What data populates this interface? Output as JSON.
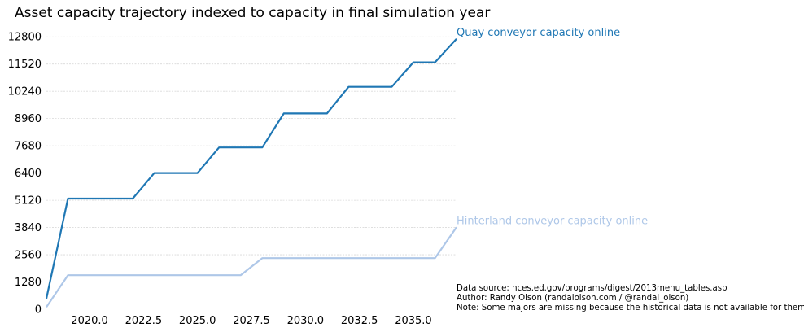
{
  "chart_data": {
    "type": "line",
    "title": "Asset capacity trajectory indexed to capacity in final simulation year",
    "xlabel": "",
    "ylabel": "",
    "xlim": [
      2018,
      2037
    ],
    "ylim": [
      0,
      13000
    ],
    "yticks": [
      0,
      1280,
      2560,
      3840,
      5120,
      6400,
      7680,
      8960,
      10240,
      11520,
      12800
    ],
    "xticks": [
      2020.0,
      2022.5,
      2025.0,
      2027.5,
      2030.0,
      2032.5,
      2035.0
    ],
    "xtick_labels": [
      "2020.0",
      "2022.5",
      "2025.0",
      "2027.5",
      "2030.0",
      "2032.5",
      "2035.0"
    ],
    "grid": "horizontal dotted",
    "series": [
      {
        "name": "Quay conveyor capacity online",
        "color": "#1f77b4",
        "x": [
          2018,
          2019,
          2020,
          2021,
          2022,
          2023,
          2024,
          2025,
          2026,
          2027,
          2028,
          2029,
          2030,
          2031,
          2032,
          2033,
          2034,
          2035,
          2036,
          2037
        ],
        "y": [
          500,
          5200,
          5200,
          5200,
          5200,
          6400,
          6400,
          6400,
          7600,
          7600,
          7600,
          9200,
          9200,
          9200,
          10450,
          10450,
          10450,
          11600,
          11600,
          12700
        ]
      },
      {
        "name": "Hinterland conveyor capacity online",
        "color": "#aec7e8",
        "x": [
          2018,
          2019,
          2020,
          2021,
          2022,
          2023,
          2024,
          2025,
          2026,
          2027,
          2028,
          2029,
          2030,
          2031,
          2032,
          2033,
          2034,
          2035,
          2036,
          2037
        ],
        "y": [
          100,
          1600,
          1600,
          1600,
          1600,
          1600,
          1600,
          1600,
          1600,
          1600,
          2400,
          2400,
          2400,
          2400,
          2400,
          2400,
          2400,
          2400,
          2400,
          3850
        ]
      }
    ],
    "notes": [
      "Data source: nces.ed.gov/programs/digest/2013menu_tables.asp",
      "Author: Randy Olson (randalolson.com / @randal_olson)",
      "Note: Some majors are missing because the historical data is not available for them"
    ]
  }
}
